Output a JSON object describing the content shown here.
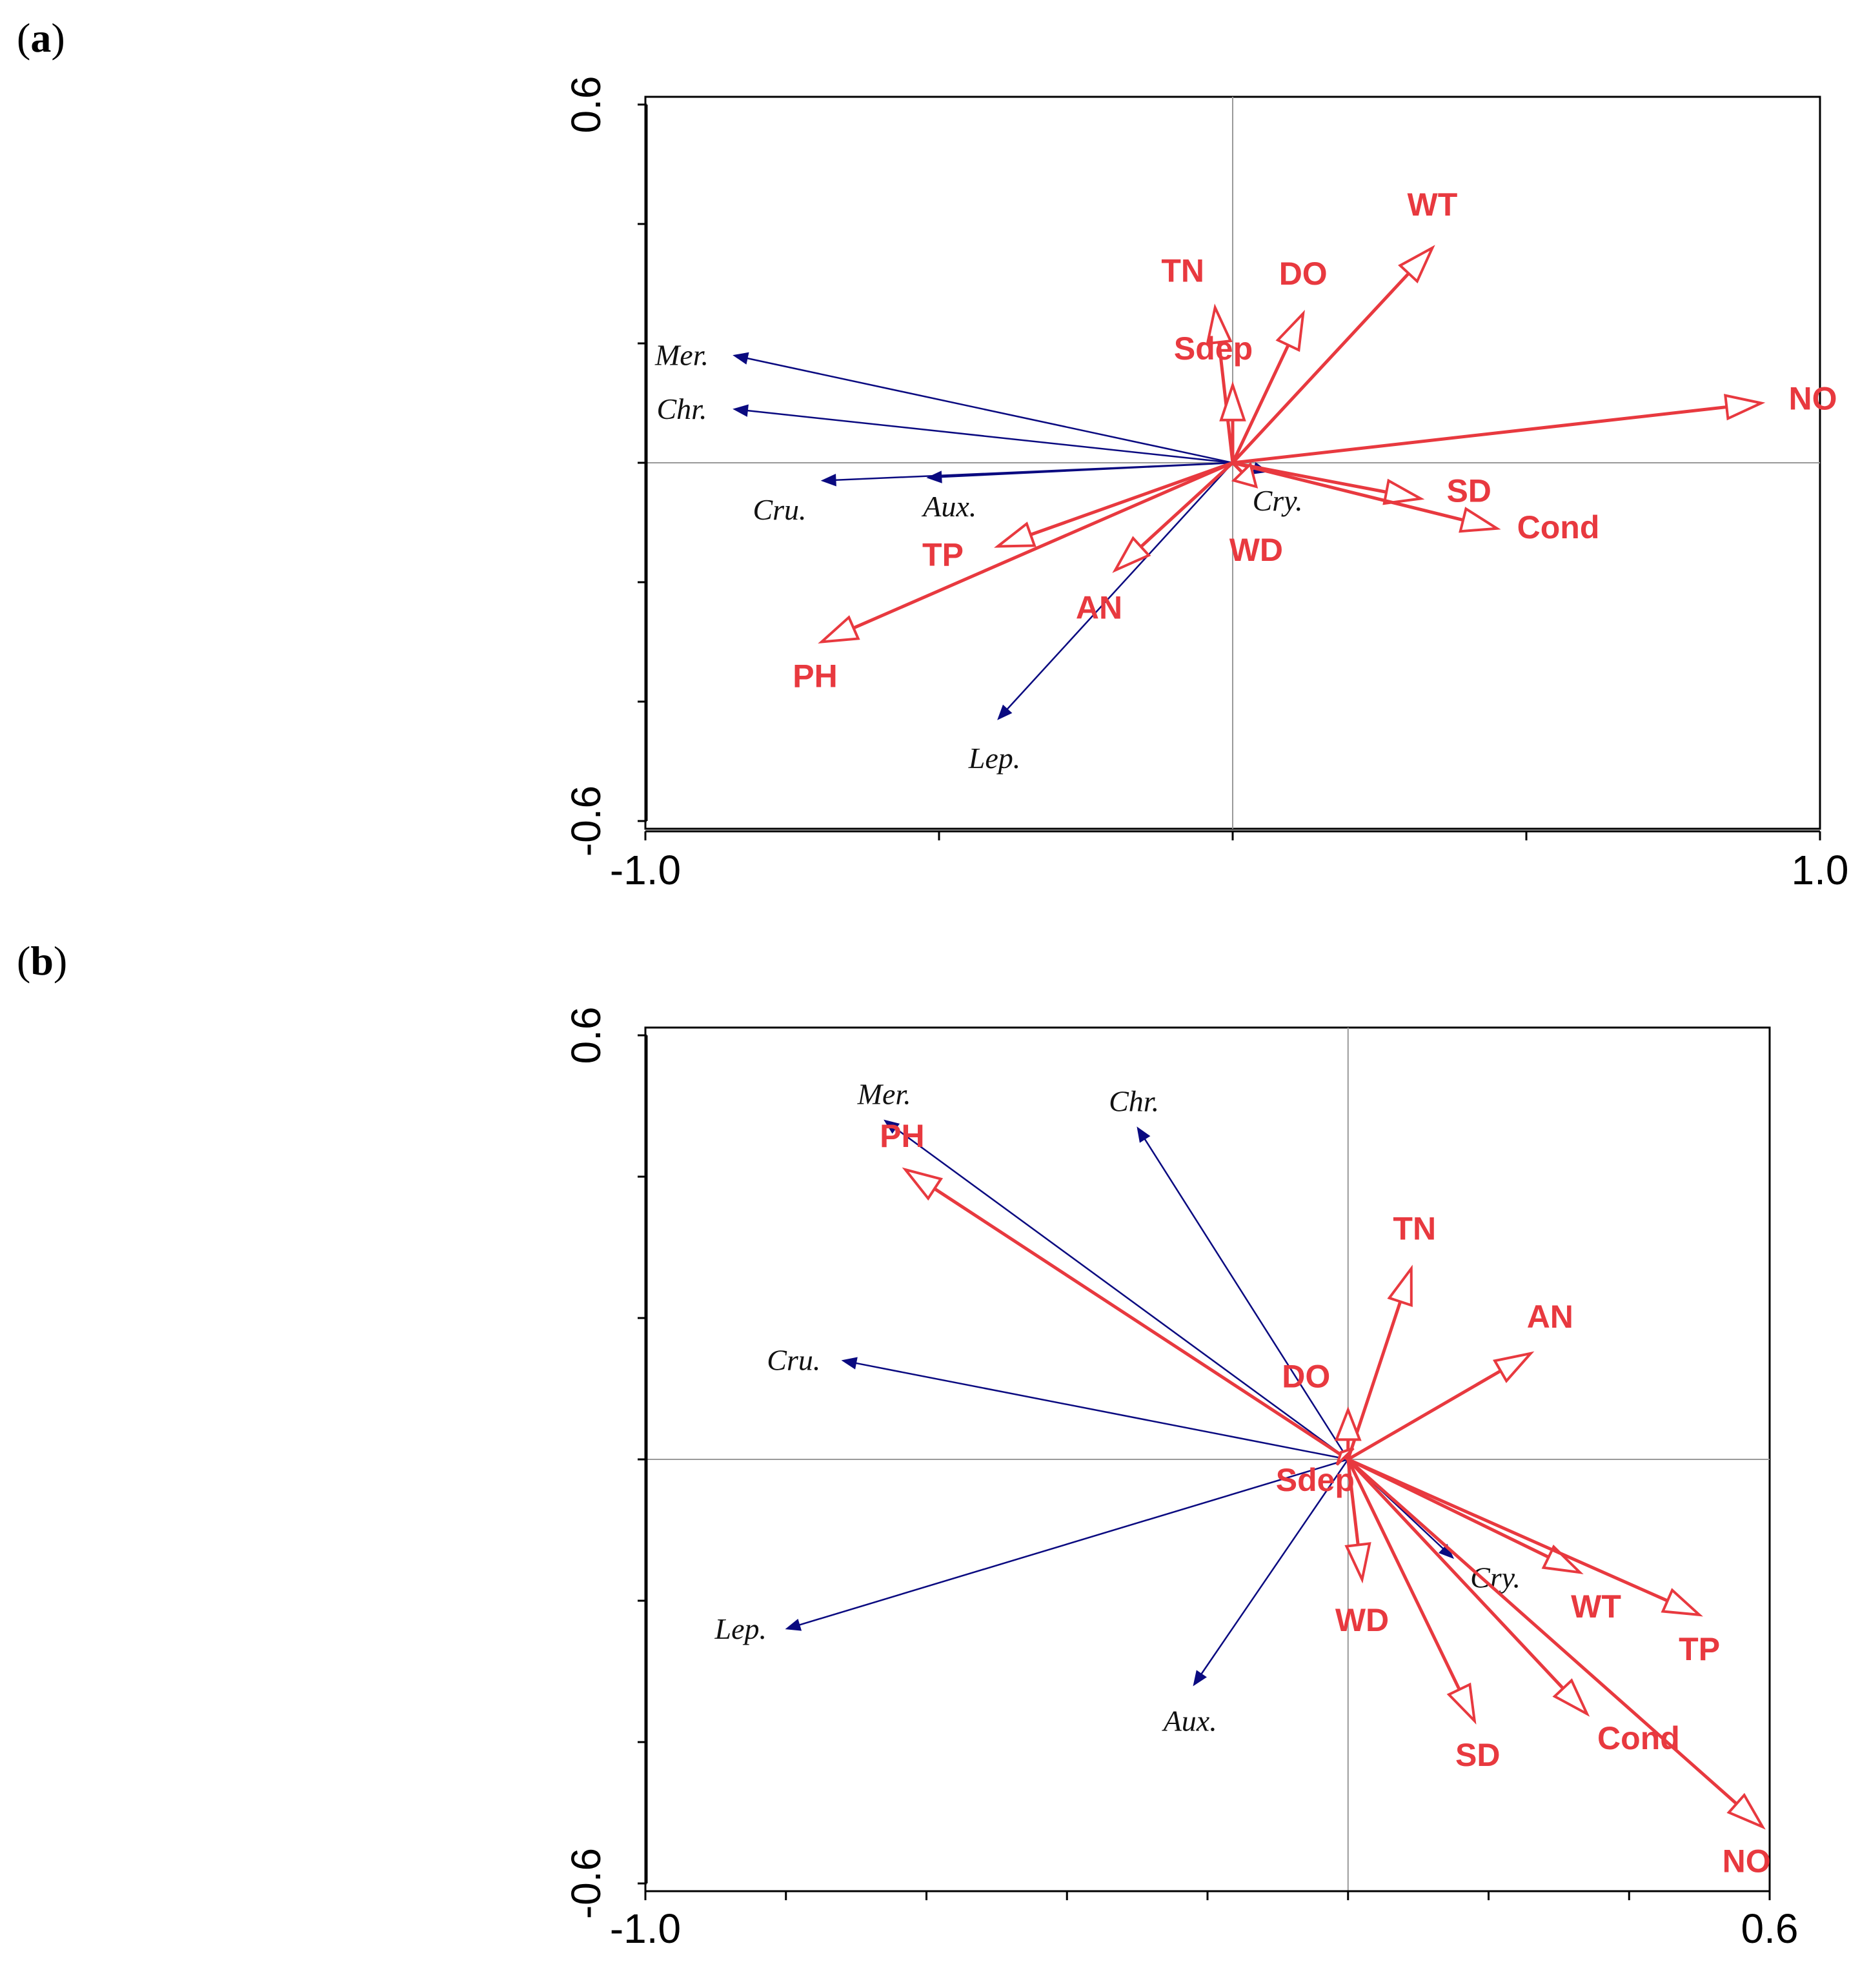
{
  "panels": [
    {
      "label_open": "(",
      "letter": "a",
      "label_close": ")"
    },
    {
      "label_open": "(",
      "letter": "b",
      "label_close": ")"
    }
  ],
  "colors": {
    "env": "#e8393f",
    "species": "#0a0a80",
    "axis": "#000000",
    "zero": "#999999"
  },
  "chart_data": [
    {
      "type": "scatter",
      "subtype": "biplot",
      "title": "(a)",
      "xlim": [
        -1.0,
        1.0
      ],
      "ylim": [
        -0.6,
        0.6
      ],
      "xticks": [
        {
          "v": -1.0,
          "label": "-1.0"
        },
        {
          "v": 1.0,
          "label": "1.0"
        }
      ],
      "yticks": [
        {
          "v": 0.6,
          "label": "0.6"
        },
        {
          "v": -0.6,
          "label": "-0.6"
        }
      ],
      "minor_xticks": [
        -1.0,
        -0.5,
        0.0,
        0.5,
        1.0
      ],
      "minor_yticks": [
        -0.6,
        -0.4,
        -0.2,
        0.0,
        0.2,
        0.4,
        0.6
      ],
      "env_vectors": [
        {
          "name": "WT",
          "x": 0.34,
          "y": 0.36
        },
        {
          "name": "TN",
          "x": -0.03,
          "y": 0.26
        },
        {
          "name": "DO",
          "x": 0.12,
          "y": 0.25
        },
        {
          "name": "Sdep",
          "x": 0.0,
          "y": 0.13
        },
        {
          "name": "NO",
          "x": 0.9,
          "y": 0.1
        },
        {
          "name": "SD",
          "x": 0.32,
          "y": -0.06
        },
        {
          "name": "Cond",
          "x": 0.45,
          "y": -0.11
        },
        {
          "name": "WD",
          "x": 0.04,
          "y": -0.04
        },
        {
          "name": "TP",
          "x": -0.4,
          "y": -0.14
        },
        {
          "name": "AN",
          "x": -0.2,
          "y": -0.18
        },
        {
          "name": "PH",
          "x": -0.7,
          "y": -0.3
        }
      ],
      "species_vectors": [
        {
          "name": "Mer.",
          "x": -0.85,
          "y": 0.18
        },
        {
          "name": "Chr.",
          "x": -0.85,
          "y": 0.09
        },
        {
          "name": "Cru.",
          "x": -0.7,
          "y": -0.03
        },
        {
          "name": "Aux.",
          "x": -0.52,
          "y": -0.025
        },
        {
          "name": "Lep.",
          "x": -0.4,
          "y": -0.43
        },
        {
          "name": "Cry.",
          "x": 0.06,
          "y": -0.015
        }
      ]
    },
    {
      "type": "scatter",
      "subtype": "biplot",
      "title": "(b)",
      "xlim": [
        -1.0,
        0.6
      ],
      "ylim": [
        -0.6,
        0.6
      ],
      "xticks": [
        {
          "v": -1.0,
          "label": "-1.0"
        },
        {
          "v": 0.6,
          "label": "0.6"
        }
      ],
      "yticks": [
        {
          "v": 0.6,
          "label": "0.6"
        },
        {
          "v": -0.6,
          "label": "-0.6"
        }
      ],
      "minor_xticks": [
        -1.0,
        -0.8,
        -0.6,
        -0.4,
        -0.2,
        0.0,
        0.2,
        0.4,
        0.6
      ],
      "minor_yticks": [
        -0.6,
        -0.4,
        -0.2,
        0.0,
        0.2,
        0.4,
        0.6
      ],
      "env_vectors": [
        {
          "name": "PH",
          "x": -0.63,
          "y": 0.41
        },
        {
          "name": "TN",
          "x": 0.09,
          "y": 0.27
        },
        {
          "name": "AN",
          "x": 0.26,
          "y": 0.15
        },
        {
          "name": "DO",
          "x": 0.0,
          "y": 0.07
        },
        {
          "name": "Sdep",
          "x": -0.01,
          "y": 0.01
        },
        {
          "name": "WD",
          "x": 0.02,
          "y": -0.17
        },
        {
          "name": "WT",
          "x": 0.33,
          "y": -0.16
        },
        {
          "name": "TP",
          "x": 0.5,
          "y": -0.22
        },
        {
          "name": "SD",
          "x": 0.18,
          "y": -0.37
        },
        {
          "name": "Cond",
          "x": 0.34,
          "y": -0.36
        },
        {
          "name": "NO",
          "x": 0.59,
          "y": -0.52
        }
      ],
      "species_vectors": [
        {
          "name": "Mer.",
          "x": -0.66,
          "y": 0.48
        },
        {
          "name": "Chr.",
          "x": -0.3,
          "y": 0.47
        },
        {
          "name": "Cru.",
          "x": -0.72,
          "y": 0.14
        },
        {
          "name": "Lep.",
          "x": -0.8,
          "y": -0.24
        },
        {
          "name": "Aux.",
          "x": -0.22,
          "y": -0.32
        },
        {
          "name": "Cry.",
          "x": 0.15,
          "y": -0.14
        }
      ]
    }
  ]
}
